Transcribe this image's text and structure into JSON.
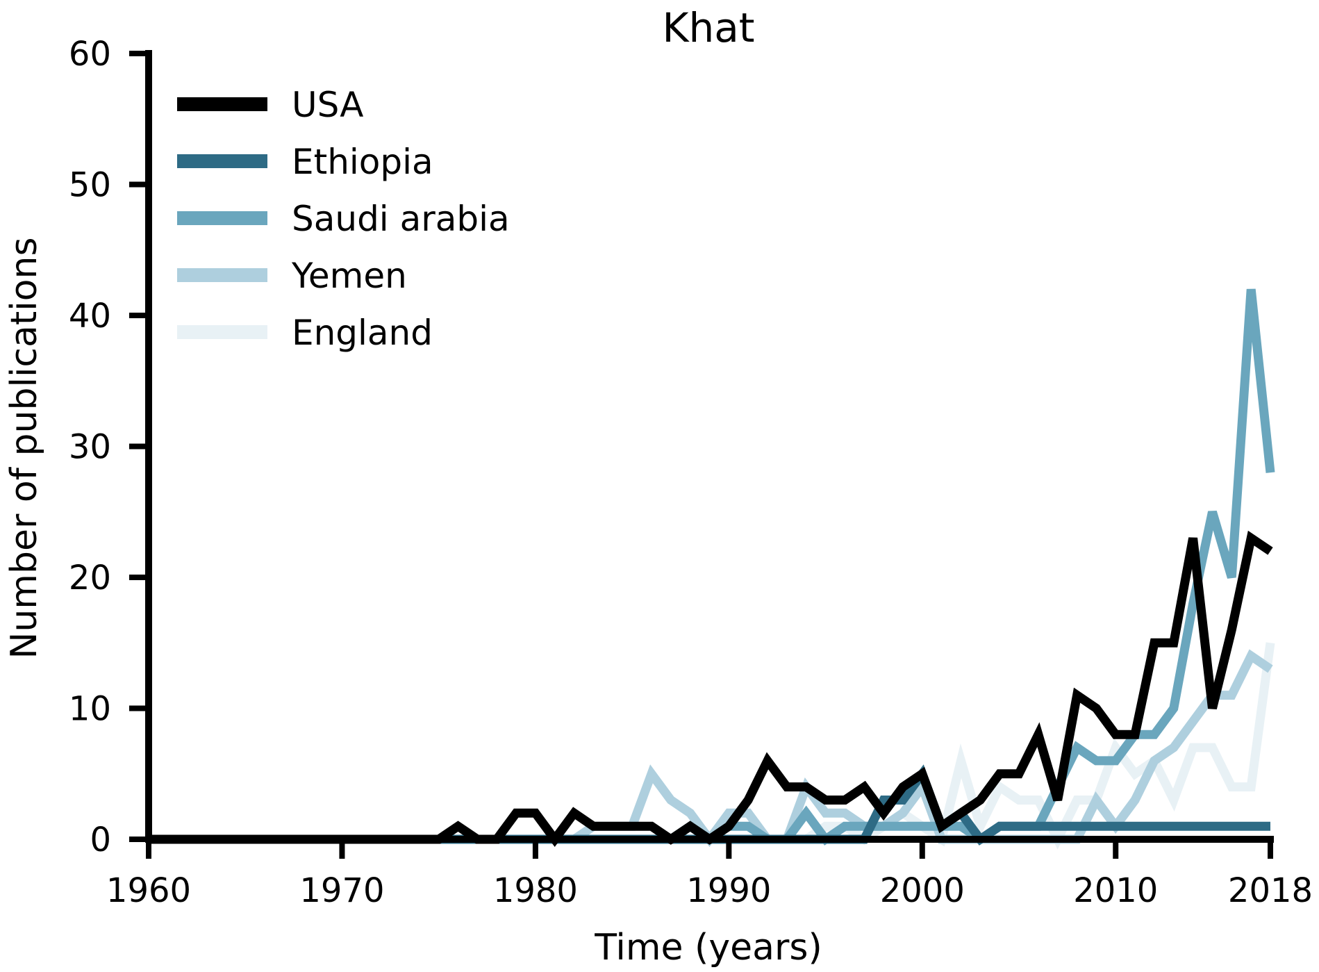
{
  "chart_data": {
    "type": "line",
    "title": "Khat",
    "xlabel": "Time (years)",
    "ylabel": "Number of publications",
    "xlim": [
      1960,
      2018
    ],
    "ylim": [
      0,
      60
    ],
    "xticks": [
      "1960",
      "1970",
      "1980",
      "1990",
      "2000",
      "2010",
      "2018"
    ],
    "yticks": [
      "0",
      "10",
      "20",
      "30",
      "40",
      "50",
      "60"
    ],
    "grid": false,
    "legend": "top-left",
    "x": [
      1960,
      1961,
      1962,
      1963,
      1964,
      1965,
      1966,
      1967,
      1968,
      1969,
      1970,
      1971,
      1972,
      1973,
      1974,
      1975,
      1976,
      1977,
      1978,
      1979,
      1980,
      1981,
      1982,
      1983,
      1984,
      1985,
      1986,
      1987,
      1988,
      1989,
      1990,
      1991,
      1992,
      1993,
      1994,
      1995,
      1996,
      1997,
      1998,
      1999,
      2000,
      2001,
      2002,
      2003,
      2004,
      2005,
      2006,
      2007,
      2008,
      2009,
      2010,
      2011,
      2012,
      2013,
      2014,
      2015,
      2016,
      2017,
      2018
    ],
    "series": [
      {
        "name": "England",
        "color": "#e8f1f5",
        "values": [
          0,
          0,
          0,
          0,
          0,
          0,
          0,
          0,
          0,
          0,
          0,
          0,
          0,
          0,
          0,
          0,
          0,
          0,
          0,
          0,
          0,
          0,
          0,
          0,
          0,
          0,
          0,
          0,
          0,
          0,
          0,
          0,
          0,
          0,
          0,
          1,
          1,
          0,
          1,
          2,
          1,
          0,
          6,
          1,
          4,
          3,
          3,
          0,
          3,
          3,
          7,
          5,
          6,
          3,
          7,
          7,
          4,
          4,
          15
        ]
      },
      {
        "name": "Yemen",
        "color": "#aecfde",
        "values": [
          0,
          0,
          0,
          0,
          0,
          0,
          0,
          0,
          0,
          0,
          0,
          0,
          0,
          0,
          0,
          0,
          0,
          0,
          0,
          0,
          0,
          0,
          0,
          1,
          1,
          1,
          5,
          3,
          2,
          0,
          2,
          2,
          0,
          0,
          4,
          2,
          2,
          1,
          1,
          2,
          4,
          0,
          0,
          0,
          0,
          0,
          0,
          0,
          0,
          3,
          1,
          3,
          6,
          7,
          9,
          11,
          11,
          14,
          13
        ]
      },
      {
        "name": "Saudi arabia",
        "color": "#6aa6bd",
        "values": [
          0,
          0,
          0,
          0,
          0,
          0,
          0,
          0,
          0,
          0,
          0,
          0,
          0,
          0,
          0,
          0,
          0,
          0,
          0,
          0,
          0,
          0,
          0,
          0,
          0,
          0,
          0,
          0,
          1,
          0,
          1,
          1,
          0,
          0,
          2,
          0,
          1,
          1,
          1,
          1,
          1,
          1,
          1,
          0,
          1,
          1,
          1,
          4,
          7,
          6,
          6,
          8,
          8,
          10,
          18,
          25,
          20,
          42,
          28
        ]
      },
      {
        "name": "Ethiopia",
        "color": "#2e6b85",
        "values": [
          0,
          0,
          0,
          0,
          0,
          0,
          0,
          0,
          0,
          0,
          0,
          0,
          0,
          0,
          0,
          0,
          0,
          0,
          0,
          0,
          0,
          0,
          0,
          0,
          0,
          0,
          0,
          0,
          0,
          0,
          0,
          0,
          0,
          0,
          0,
          0,
          0,
          0,
          3,
          3,
          5,
          1,
          2,
          0,
          1,
          1,
          1,
          1,
          1,
          1,
          1,
          1,
          1,
          1,
          1,
          1,
          1,
          1,
          1
        ]
      },
      {
        "name": "USA",
        "color": "#000000",
        "values": [
          0,
          0,
          0,
          0,
          0,
          0,
          0,
          0,
          0,
          0,
          0,
          0,
          0,
          0,
          0,
          0,
          1,
          0,
          0,
          2,
          2,
          0,
          2,
          1,
          1,
          1,
          1,
          0,
          1,
          0,
          1,
          3,
          6,
          4,
          4,
          3,
          3,
          4,
          2,
          4,
          5,
          1,
          2,
          3,
          5,
          5,
          8,
          3,
          11,
          10,
          8,
          8,
          15,
          15,
          23,
          10,
          16,
          23,
          22
        ]
      }
    ],
    "legend_order": [
      "USA",
      "Ethiopia",
      "Saudi arabia",
      "Yemen",
      "England"
    ]
  }
}
